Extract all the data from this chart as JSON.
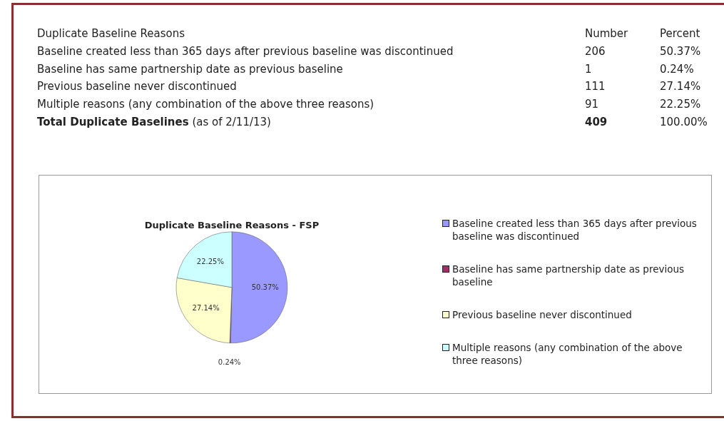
{
  "chart_data": {
    "type": "pie",
    "title": "Duplicate Baseline Reasons - FSP",
    "categories": [
      "Baseline created less than 365 days after previous baseline was discontinued",
      "Baseline has same partnership date as previous baseline",
      "Previous baseline never discontinued",
      "Multiple reasons (any combination of the above three reasons)"
    ],
    "values": [
      50.37,
      0.24,
      27.14,
      22.25
    ],
    "value_labels": [
      "50.37%",
      "0.24%",
      "27.14%",
      "22.25%"
    ],
    "colors": [
      "#9999ff",
      "#993366",
      "#ffffcc",
      "#ccffff"
    ],
    "legend": "right",
    "annotations": [
      "Duplicate Baseline Reasons",
      "Number",
      "Percent",
      "206",
      "1",
      "111",
      "91",
      "Total Duplicate Baselines",
      "(as of 2/11/13)",
      "409",
      "100.00%"
    ]
  }
}
